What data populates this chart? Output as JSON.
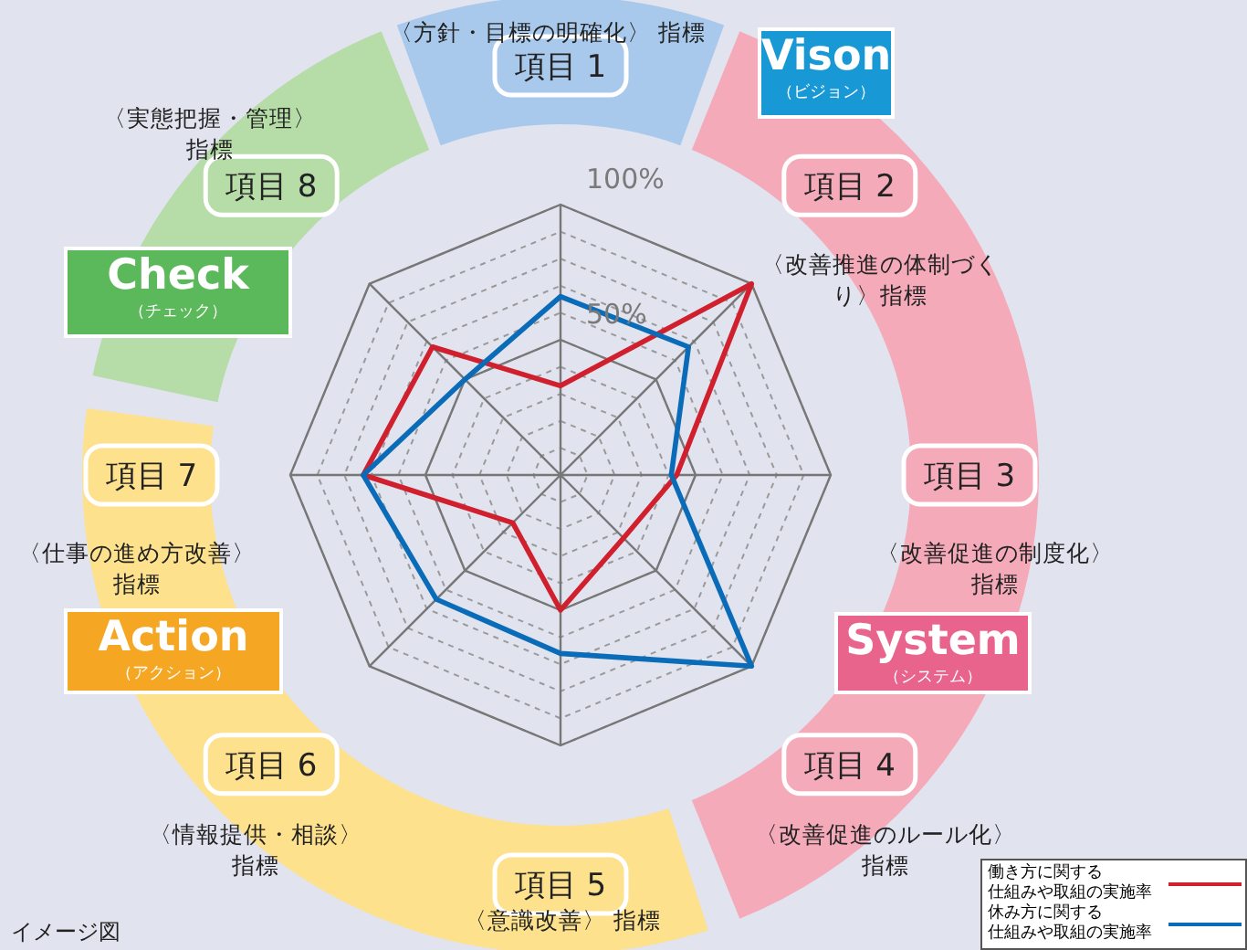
{
  "chart_data": {
    "type": "radar",
    "categories": [
      "項目 1",
      "項目 2",
      "項目 3",
      "項目 4",
      "項目 5",
      "項目 6",
      "項目 7",
      "項目 8"
    ],
    "series": [
      {
        "name": "働き方に関する仕組みや取組の実施率",
        "color": "#d0202e",
        "values": [
          33,
          100,
          43,
          33,
          50,
          25,
          73,
          67
        ]
      },
      {
        "name": "休み方に関する仕組みや取組の実施率",
        "color": "#0a6cb8",
        "values": [
          66,
          67,
          41,
          100,
          66,
          65,
          73,
          50
        ]
      }
    ],
    "ylim": [
      0,
      100
    ],
    "yticks": [
      {
        "value": 50,
        "label": "50%"
      },
      {
        "value": 100,
        "label": "100%"
      }
    ],
    "grid": true,
    "marker": "none",
    "line_style": "solid",
    "legend": "bottom right",
    "annotations": [
      "〈方針・目標の明確化〉 指標",
      "〈改善推進の体制づくり〉指標",
      "〈改善促進の制度化〉指標",
      "〈改善促進のルール化〉指標",
      "〈意識改善〉 指標",
      "〈情報提供・相談〉指標",
      "〈仕事の進め方改善〉指標",
      "〈実態把握・管理〉指標",
      "Vison",
      "（ビジョン）",
      "System",
      "（システム）",
      "Action",
      "（アクション）",
      "Check",
      "（チェック）",
      "イメージ図"
    ]
  }
}
